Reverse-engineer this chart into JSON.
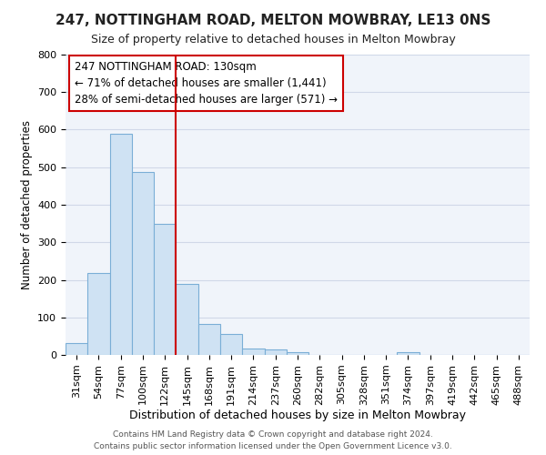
{
  "title1": "247, NOTTINGHAM ROAD, MELTON MOWBRAY, LE13 0NS",
  "title2": "Size of property relative to detached houses in Melton Mowbray",
  "xlabel": "Distribution of detached houses by size in Melton Mowbray",
  "ylabel": "Number of detached properties",
  "categories": [
    "31sqm",
    "54sqm",
    "77sqm",
    "100sqm",
    "122sqm",
    "145sqm",
    "168sqm",
    "191sqm",
    "214sqm",
    "237sqm",
    "260sqm",
    "282sqm",
    "305sqm",
    "328sqm",
    "351sqm",
    "374sqm",
    "397sqm",
    "419sqm",
    "442sqm",
    "465sqm",
    "488sqm"
  ],
  "values": [
    32,
    218,
    590,
    488,
    350,
    188,
    83,
    55,
    18,
    14,
    8,
    0,
    0,
    0,
    0,
    8,
    0,
    0,
    0,
    0,
    0
  ],
  "bar_color": "#cfe2f3",
  "bar_edge_color": "#7aaed6",
  "vline_x": 4.5,
  "vline_color": "#cc0000",
  "annotation_line1": "247 NOTTINGHAM ROAD: 130sqm",
  "annotation_line2": "← 71% of detached houses are smaller (1,441)",
  "annotation_line3": "28% of semi-detached houses are larger (571) →",
  "annotation_box_facecolor": "#ffffff",
  "annotation_box_edgecolor": "#cc0000",
  "footer1": "Contains HM Land Registry data © Crown copyright and database right 2024.",
  "footer2": "Contains public sector information licensed under the Open Government Licence v3.0.",
  "bg_color": "#ffffff",
  "plot_bg_color": "#f0f4fa",
  "ylim": [
    0,
    800
  ],
  "yticks": [
    0,
    100,
    200,
    300,
    400,
    500,
    600,
    700,
    800
  ],
  "title1_fontsize": 11,
  "title2_fontsize": 9,
  "xlabel_fontsize": 9,
  "ylabel_fontsize": 8.5,
  "tick_fontsize": 8,
  "annotation_fontsize": 8.5,
  "footer_fontsize": 6.5
}
